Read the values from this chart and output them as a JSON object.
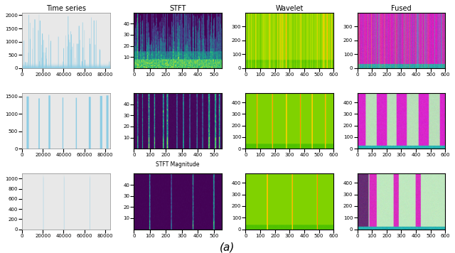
{
  "figure_title": "(a)",
  "col_titles": [
    "Time series",
    "STFT",
    "Wavelet",
    "Fused"
  ],
  "stft_xlabel": "STFT Magnitude",
  "figsize": [
    6.4,
    3.56
  ],
  "dpi": 100,
  "nrows": 3,
  "ncols": 4,
  "row_configs": [
    {
      "ts_ylim": [
        0,
        2100
      ],
      "ts_yticks": [
        0,
        500,
        1000,
        1500,
        2000
      ],
      "ts_xlim": [
        0,
        85000
      ],
      "ts_xticks": [
        0,
        20000,
        40000,
        60000,
        80000
      ],
      "stft_ylim": [
        0,
        50
      ],
      "stft_yticks": [
        10,
        20,
        30,
        40
      ],
      "stft_xlim": [
        0,
        550
      ],
      "stft_xticks": [
        0,
        100,
        200,
        300,
        400,
        500
      ],
      "wav_ylim": [
        0,
        400
      ],
      "wav_yticks": [
        0,
        100,
        200,
        300
      ],
      "wav_xlim": [
        0,
        600
      ],
      "wav_xticks": [
        0,
        100,
        200,
        300,
        400,
        500,
        600
      ],
      "fused_ylim": [
        0,
        400
      ],
      "fused_yticks": [
        0,
        100,
        200,
        300
      ],
      "fused_xlim": [
        0,
        600
      ],
      "fused_xticks": [
        0,
        100,
        200,
        300,
        400,
        500,
        600
      ]
    },
    {
      "ts_ylim": [
        0,
        1600
      ],
      "ts_yticks": [
        0,
        500,
        1000,
        1500
      ],
      "ts_xlim": [
        0,
        85000
      ],
      "ts_xticks": [
        0,
        20000,
        40000,
        60000,
        80000
      ],
      "stft_ylim": [
        0,
        50
      ],
      "stft_yticks": [
        10,
        20,
        30,
        40
      ],
      "stft_xlim": [
        0,
        550
      ],
      "stft_xticks": [
        0,
        100,
        200,
        300,
        400,
        500
      ],
      "wav_ylim": [
        0,
        480
      ],
      "wav_yticks": [
        0,
        100,
        200,
        300,
        400
      ],
      "wav_xlim": [
        0,
        600
      ],
      "wav_xticks": [
        0,
        100,
        200,
        300,
        400,
        500,
        600
      ],
      "fused_ylim": [
        0,
        480
      ],
      "fused_yticks": [
        0,
        100,
        200,
        300,
        400
      ],
      "fused_xlim": [
        0,
        600
      ],
      "fused_xticks": [
        0,
        100,
        200,
        300,
        400,
        500,
        600
      ]
    },
    {
      "ts_ylim": [
        0,
        1100
      ],
      "ts_yticks": [
        0,
        200,
        400,
        600,
        800,
        1000
      ],
      "ts_xlim": [
        0,
        85000
      ],
      "ts_xticks": [
        0,
        20000,
        40000,
        60000,
        80000
      ],
      "stft_ylim": [
        0,
        50
      ],
      "stft_yticks": [
        10,
        20,
        30,
        40
      ],
      "stft_xlim": [
        0,
        550
      ],
      "stft_xticks": [
        0,
        100,
        200,
        300,
        400,
        500
      ],
      "wav_ylim": [
        0,
        480
      ],
      "wav_yticks": [
        0,
        100,
        200,
        300,
        400
      ],
      "wav_xlim": [
        0,
        600
      ],
      "wav_xticks": [
        0,
        100,
        200,
        300,
        400,
        500,
        600
      ],
      "fused_ylim": [
        0,
        480
      ],
      "fused_yticks": [
        0,
        100,
        200,
        300,
        400
      ],
      "fused_xlim": [
        0,
        600
      ],
      "fused_xticks": [
        0,
        100,
        200,
        300,
        400,
        500,
        600
      ]
    }
  ],
  "ts_color_light": "#7ec8e3",
  "ts_color_dark": "#1a5276",
  "ts_linewidth": 0.5,
  "stft_cmap": "viridis"
}
